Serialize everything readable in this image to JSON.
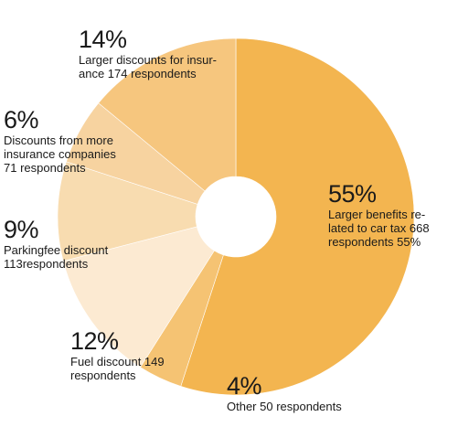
{
  "chart_data": {
    "type": "pie",
    "variant": "donut",
    "slices": [
      {
        "pct_label": "55%",
        "text": "Larger benefits re-\nlated to car tax 668\nrespondents 55%",
        "value": 55,
        "color": "#f3b550"
      },
      {
        "pct_label": "4%",
        "text": "Other 50 respondents",
        "value": 4,
        "color": "#f5c373"
      },
      {
        "pct_label": "12%",
        "text": "Fuel discount 149\nrespondents",
        "value": 12,
        "color": "#fcead2"
      },
      {
        "pct_label": "9%",
        "text": "Parkingfee discount\n113respondents",
        "value": 9,
        "color": "#f8dcb0"
      },
      {
        "pct_label": "6%",
        "text": "Discounts from more\ninsurance companies\n71 respondents",
        "value": 6,
        "color": "#f7d3a0"
      },
      {
        "pct_label": "14%",
        "text": "Larger discounts for insur-\nance 174 respondents",
        "value": 14,
        "color": "#f6c67e"
      }
    ]
  }
}
